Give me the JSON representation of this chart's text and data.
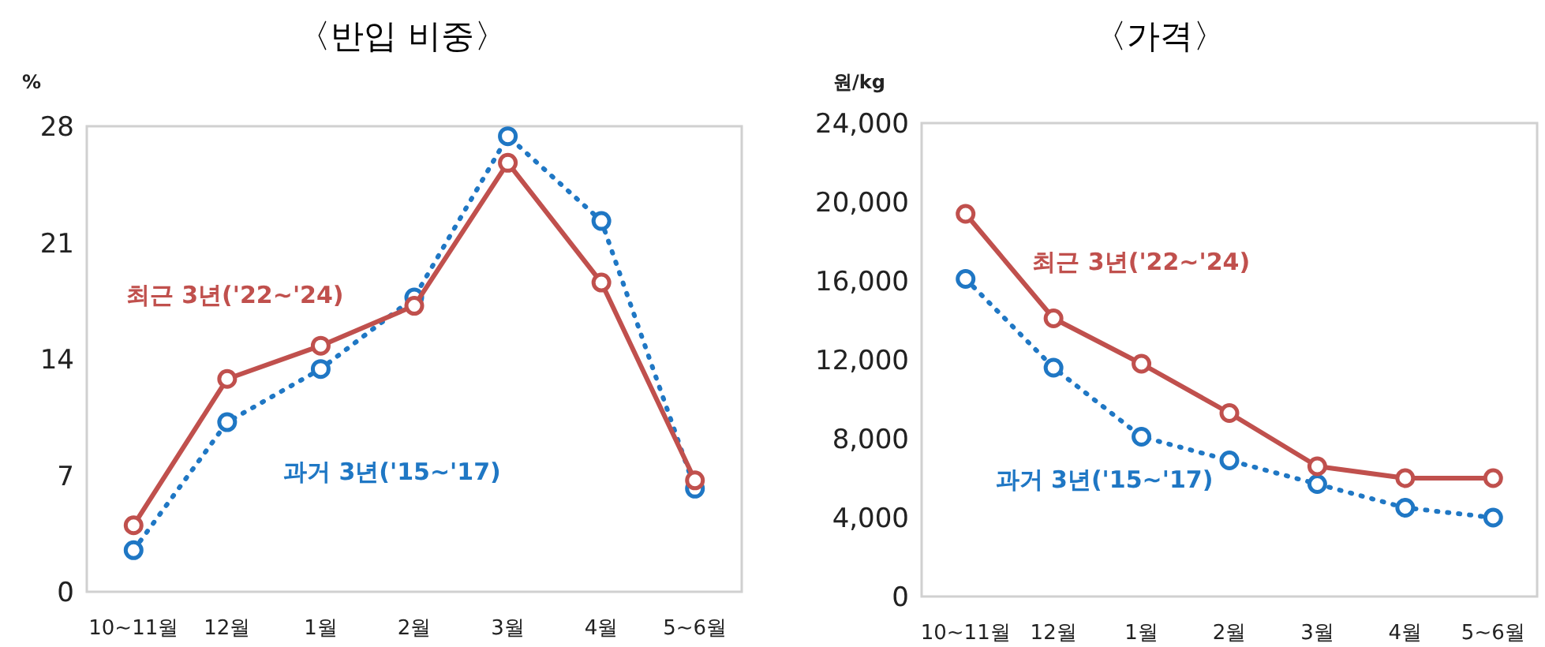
{
  "chart_data": [
    {
      "type": "line",
      "title": "〈반입 비중〉",
      "ylabel": "%",
      "categories": [
        "10~11월",
        "12월",
        "1월",
        "2월",
        "3월",
        "4월",
        "5~6월"
      ],
      "ylim": [
        0,
        28
      ],
      "yticks": [
        0,
        7,
        14,
        21,
        28
      ],
      "grid": false,
      "legend": false,
      "marker": "circle",
      "series": [
        {
          "name": "최근 3년('22~'24)",
          "color": "#c0504d",
          "line_style": "solid",
          "values": [
            4.0,
            12.8,
            14.8,
            17.2,
            25.8,
            18.6,
            6.7
          ]
        },
        {
          "name": "과거 3년('15~'17)",
          "color": "#1f77c4",
          "line_style": "dotted",
          "values": [
            2.5,
            10.2,
            13.4,
            17.7,
            27.4,
            22.3,
            6.2
          ]
        }
      ]
    },
    {
      "type": "line",
      "title": "〈가격〉",
      "ylabel": "원/kg",
      "categories": [
        "10~11월",
        "12월",
        "1월",
        "2월",
        "3월",
        "4월",
        "5~6월"
      ],
      "ylim": [
        0,
        24000
      ],
      "yticks": [
        {
          "value": 0,
          "label": "0"
        },
        {
          "value": 4000,
          "label": "4,000"
        },
        {
          "value": 8000,
          "label": "8,000"
        },
        {
          "value": 12000,
          "label": "12,000"
        },
        {
          "value": 16000,
          "label": "16,000"
        },
        {
          "value": 20000,
          "label": "20,000"
        },
        {
          "value": 24000,
          "label": "24,000"
        }
      ],
      "grid": false,
      "legend": false,
      "marker": "circle",
      "series": [
        {
          "name": "최근 3년('22~'24)",
          "color": "#c0504d",
          "line_style": "solid",
          "values": [
            19400,
            14100,
            11800,
            9300,
            6600,
            6000,
            6000
          ]
        },
        {
          "name": "과거 3년('15~'17)",
          "color": "#1f77c4",
          "line_style": "dotted",
          "values": [
            16100,
            11600,
            8100,
            6900,
            5700,
            4500,
            4000
          ]
        }
      ]
    }
  ]
}
